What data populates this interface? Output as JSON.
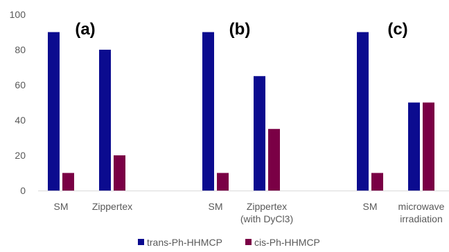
{
  "chart_data": {
    "type": "bar",
    "ylim": [
      0,
      100
    ],
    "yticks": [
      0,
      20,
      40,
      60,
      80,
      100
    ],
    "grid": false,
    "legend_position": "bottom",
    "colors": {
      "trans": "#0b0b8f",
      "cis": "#7a0045"
    },
    "panels": [
      {
        "label": "(a)",
        "groups": [
          {
            "category": [
              "SM"
            ],
            "trans": 90,
            "cis": 10
          },
          {
            "category": [
              "Zippertex"
            ],
            "trans": 80,
            "cis": 20
          }
        ]
      },
      {
        "label": "(b)",
        "groups": [
          {
            "category": [
              "SM"
            ],
            "trans": 90,
            "cis": 10
          },
          {
            "category": [
              "Zippertex",
              "(with DyCl3)"
            ],
            "trans": 65,
            "cis": 35
          }
        ]
      },
      {
        "label": "(c)",
        "groups": [
          {
            "category": [
              "SM"
            ],
            "trans": 90,
            "cis": 10
          },
          {
            "category": [
              "microwave",
              "irradiation"
            ],
            "trans": 50,
            "cis": 50
          }
        ]
      }
    ],
    "series": [
      {
        "key": "trans",
        "name": "trans-Ph-HHMCP"
      },
      {
        "key": "cis",
        "name": "cis-Ph-HHMCP"
      }
    ]
  }
}
